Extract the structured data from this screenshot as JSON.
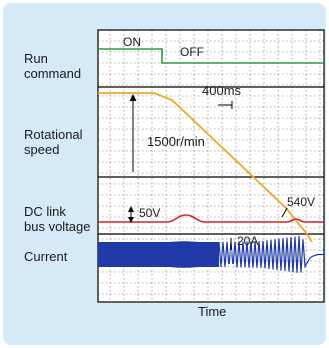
{
  "signals": {
    "run_command": {
      "label_line1": "Run",
      "label_line2": "command",
      "on_text": "ON",
      "off_text": "OFF",
      "color": "#2e9a3e"
    },
    "rotational_speed": {
      "label_line1": "Rotational",
      "label_line2": "speed",
      "value_text": "1500r/min",
      "interval_text": "400ms",
      "color": "#f0a52a"
    },
    "dc_link": {
      "label_line1": "DC link",
      "label_line2": "bus voltage",
      "rise_text": "50V",
      "level_text": "540V",
      "color": "#d9202a"
    },
    "current": {
      "label": "Current",
      "amplitude_text": "20A",
      "color": "#1f3aa6"
    }
  },
  "axis": {
    "time_label": "Time"
  },
  "colors": {
    "panel": "#d6e9f6",
    "grid": "#6a6a6a",
    "frame": "#000000",
    "plot_bg": "#ffffff"
  }
}
